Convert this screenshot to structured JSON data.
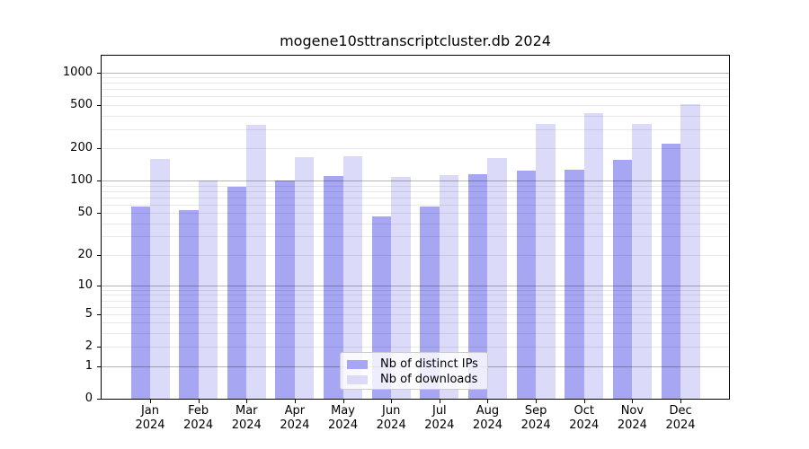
{
  "title": "mogene10sttranscriptcluster.db 2024",
  "chart_data": {
    "type": "bar",
    "title": "mogene10sttranscriptcluster.db 2024",
    "categories": [
      "Jan",
      "Feb",
      "Mar",
      "Apr",
      "May",
      "Jun",
      "Jul",
      "Aug",
      "Sep",
      "Oct",
      "Nov",
      "Dec"
    ],
    "year": "2024",
    "series": [
      {
        "name": "Nb of distinct IPs",
        "color": "#a6a6f2",
        "values": [
          58,
          53,
          88,
          100,
          111,
          46,
          58,
          114,
          123,
          126,
          157,
          220
        ]
      },
      {
        "name": "Nb of downloads",
        "color": "#dbdbf9",
        "values": [
          159,
          100,
          329,
          164,
          170,
          108,
          113,
          161,
          333,
          422,
          337,
          505
        ]
      }
    ],
    "scale": "log1p",
    "ylim": [
      0,
      1425
    ],
    "yticks": [
      0,
      1,
      2,
      5,
      10,
      20,
      50,
      100,
      200,
      500,
      1000
    ],
    "grid": {
      "major": [
        1,
        10,
        100,
        1000
      ],
      "minor": [
        2,
        3,
        4,
        5,
        6,
        7,
        8,
        9,
        20,
        30,
        40,
        50,
        60,
        70,
        80,
        90,
        200,
        300,
        400,
        500,
        600,
        700,
        800,
        900
      ]
    },
    "legend_position": "lower-center",
    "xlabel": "",
    "ylabel": ""
  }
}
